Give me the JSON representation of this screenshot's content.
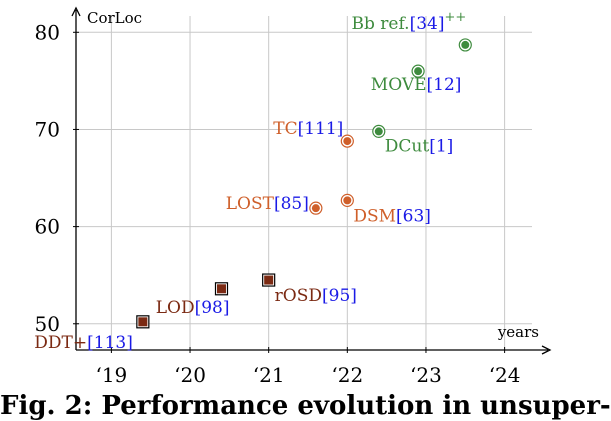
{
  "chart_data": {
    "type": "scatter",
    "ylabel": "CorLoc",
    "xlabel": "years",
    "xlim": [
      2018.55,
      2024.45
    ],
    "ylim": [
      47.3,
      82.5
    ],
    "x_ticks": [
      2019,
      2020,
      2021,
      2022,
      2023,
      2024
    ],
    "x_tick_labels": [
      "‘19",
      "‘20",
      "‘21",
      "‘22",
      "‘23",
      "‘24"
    ],
    "y_ticks": [
      50,
      60,
      70,
      80
    ],
    "y_tick_labels": [
      "50",
      "60",
      "70",
      "80"
    ],
    "grid": true,
    "colors": {
      "brown": "#7b2a13",
      "orange": "#cf5f2a",
      "green": "#3e8b3e",
      "ref": "#1a1ae6",
      "grid": "#c8c8c8",
      "axis": "#000000"
    },
    "points": [
      {
        "x": 2019.4,
        "y": 50.2,
        "name": "DDT+",
        "ref": "[113]",
        "color": "brown",
        "marker": "square"
      },
      {
        "x": 2020.4,
        "y": 53.6,
        "name": "LOD",
        "ref": "[98]",
        "color": "brown",
        "marker": "square"
      },
      {
        "x": 2021.0,
        "y": 54.5,
        "name": "rOSD",
        "ref": "[95]",
        "color": "brown",
        "marker": "square"
      },
      {
        "x": 2021.6,
        "y": 61.9,
        "name": "LOST",
        "ref": "[85]",
        "color": "orange",
        "marker": "circle"
      },
      {
        "x": 2022.0,
        "y": 62.7,
        "name": "DSM",
        "ref": "[63]",
        "color": "orange",
        "marker": "circle"
      },
      {
        "x": 2022.0,
        "y": 68.8,
        "name": "TC",
        "ref": "[111]",
        "color": "orange",
        "marker": "circle"
      },
      {
        "x": 2022.4,
        "y": 69.8,
        "name": "DCut",
        "ref": "[1]",
        "color": "green",
        "marker": "circle"
      },
      {
        "x": 2022.9,
        "y": 76.0,
        "name": "MOVE",
        "ref": "[12]",
        "color": "green",
        "marker": "circle"
      },
      {
        "x": 2023.5,
        "y": 78.7,
        "name": "Bb ref.",
        "ref": "[34]",
        "sup": "++",
        "color": "green",
        "marker": "circle"
      }
    ]
  },
  "caption": "Fig. 2: Performance evolution in unsuper-"
}
